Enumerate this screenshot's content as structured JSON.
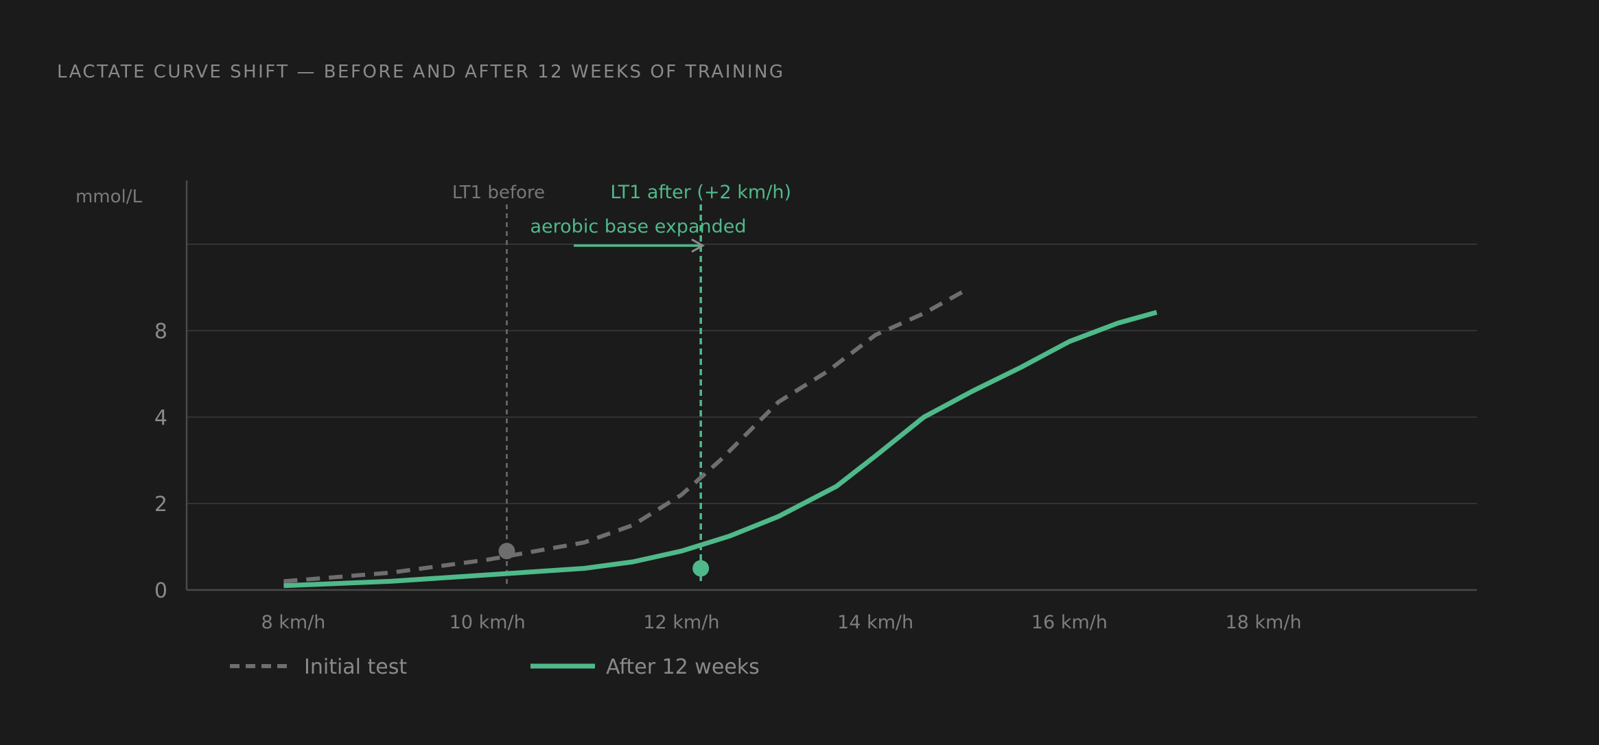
{
  "chart_data": {
    "type": "line",
    "title": "LACTATE CURVE SHIFT — BEFORE AND AFTER 12 WEEKS OF TRAINING",
    "xlabel": "",
    "ylabel": "mmol/L",
    "x_ticks": [
      {
        "value": 8,
        "label": "8 km/h"
      },
      {
        "value": 10,
        "label": "10 km/h"
      },
      {
        "value": 12,
        "label": "12 km/h"
      },
      {
        "value": 14,
        "label": "14 km/h"
      },
      {
        "value": 16,
        "label": "16 km/h"
      },
      {
        "value": 18,
        "label": "18 km/h"
      }
    ],
    "y_ticks": [
      {
        "value": 0,
        "label": "0"
      },
      {
        "value": 2,
        "label": "2"
      },
      {
        "value": 4,
        "label": "4"
      },
      {
        "value": 8,
        "label": "8"
      }
    ],
    "y_scale": "piecewise: 0, 2, 4, 8 at equal spacing (one more gridline above 8)",
    "xlim": [
      6.9,
      20.2
    ],
    "grid": true,
    "legend_placement": "bottom-left",
    "series": [
      {
        "name": "Initial test",
        "style": "dashed",
        "color": "#6e6e6e",
        "points": [
          [
            7.9,
            0.2
          ],
          [
            9.0,
            0.4
          ],
          [
            10.0,
            0.7
          ],
          [
            10.5,
            0.9
          ],
          [
            11.0,
            1.1
          ],
          [
            11.5,
            1.5
          ],
          [
            12.0,
            2.2
          ],
          [
            12.4,
            3.0
          ],
          [
            13.0,
            4.7
          ],
          [
            13.5,
            6.1
          ],
          [
            14.0,
            7.8
          ],
          [
            14.5,
            9.6
          ],
          [
            14.9,
            11.6
          ]
        ]
      },
      {
        "name": "After 12 weeks",
        "style": "solid",
        "color": "#4fb98a",
        "points": [
          [
            7.9,
            0.1
          ],
          [
            9.0,
            0.2
          ],
          [
            10.0,
            0.35
          ],
          [
            11.0,
            0.5
          ],
          [
            11.5,
            0.65
          ],
          [
            12.0,
            0.9
          ],
          [
            12.5,
            1.25
          ],
          [
            13.0,
            1.7
          ],
          [
            13.6,
            2.4
          ],
          [
            14.0,
            3.1
          ],
          [
            14.5,
            4.0
          ],
          [
            15.0,
            5.2
          ],
          [
            15.5,
            6.3
          ],
          [
            16.0,
            7.5
          ],
          [
            16.5,
            8.7
          ],
          [
            16.9,
            9.7
          ]
        ]
      }
    ],
    "annotations": [
      {
        "label": "LT1 before",
        "x": 10.2,
        "y": 0.9,
        "color": "#6e6e6e"
      },
      {
        "label": "LT1 after (+2 km/h)",
        "x": 12.2,
        "y": 0.5,
        "color": "#4fb98a"
      }
    ],
    "shift_label": "aerobic base expanded",
    "colors": {
      "background": "#1b1b1b",
      "grid": "#333333",
      "axis": "#4a4a4a",
      "text": "#8a8a8a",
      "before": "#6e6e6e",
      "after": "#4fb98a"
    }
  }
}
